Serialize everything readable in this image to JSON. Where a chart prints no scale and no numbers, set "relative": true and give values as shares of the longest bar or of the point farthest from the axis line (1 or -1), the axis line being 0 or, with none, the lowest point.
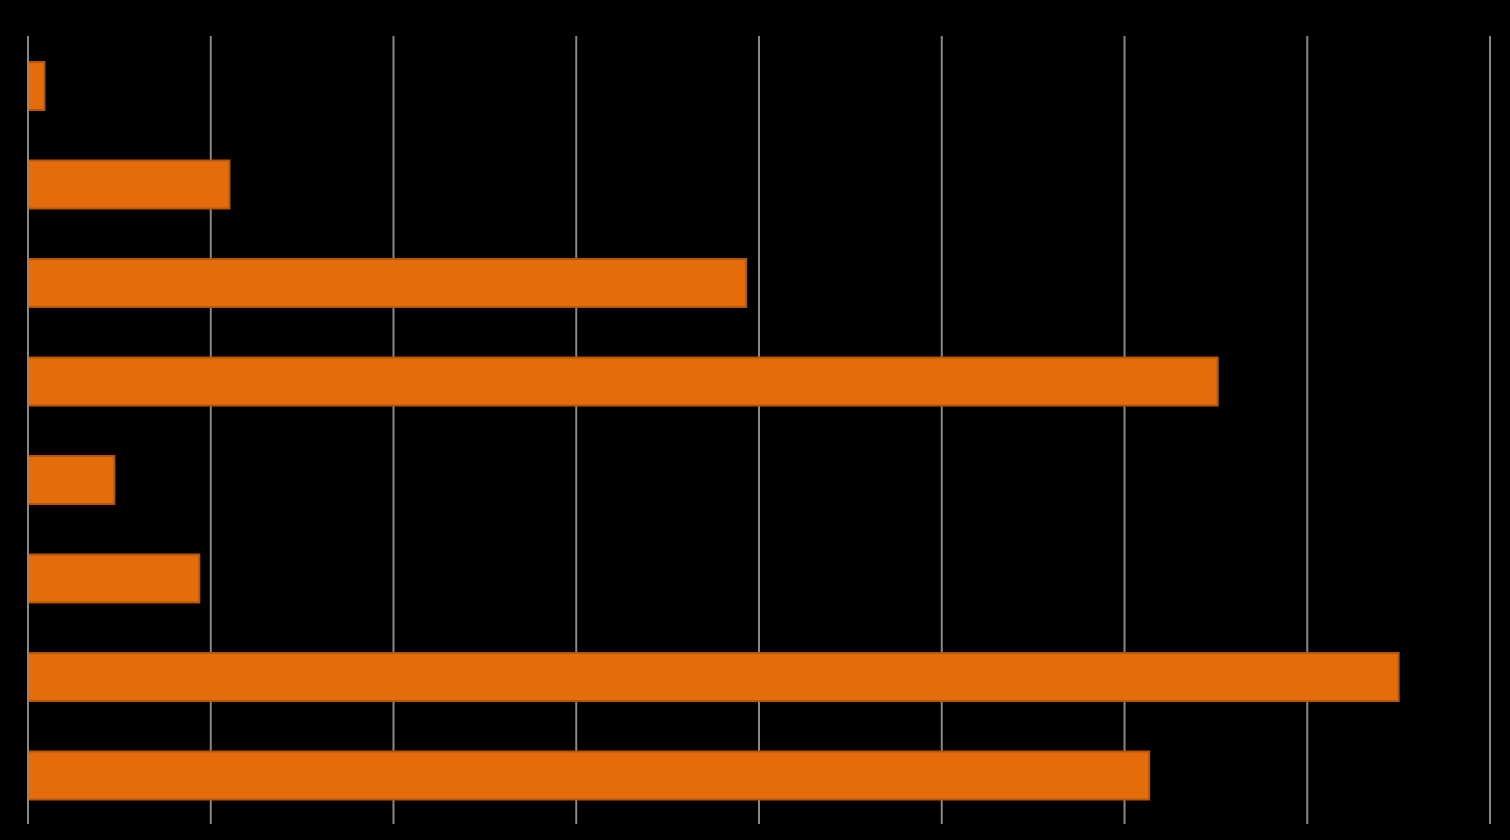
{
  "chart_data": {
    "type": "bar",
    "orientation": "horizontal",
    "relative": true,
    "grid": "x",
    "categories": [
      null,
      null,
      null,
      null,
      null,
      null,
      null,
      null
    ],
    "values": [
      0.012,
      0.147,
      0.524,
      0.868,
      0.063,
      0.125,
      1,
      0.818
    ],
    "color": "#e46c0a"
  }
}
